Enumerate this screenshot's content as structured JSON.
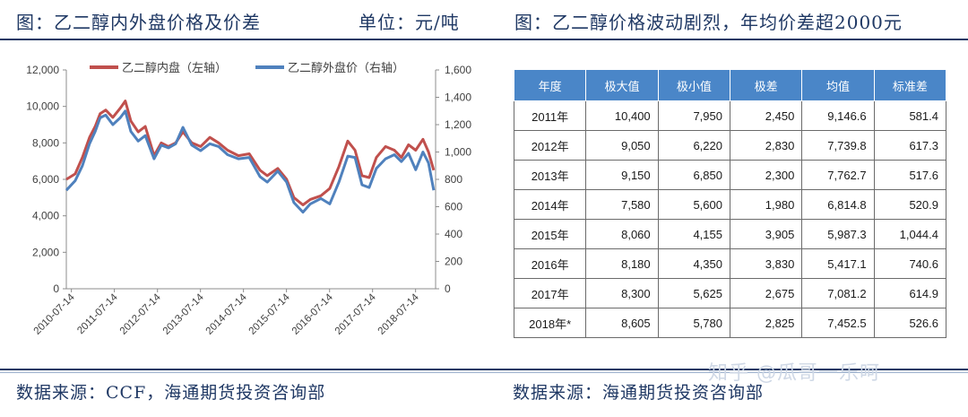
{
  "header": {
    "left_title": "图：乙二醇内外盘价格及价差",
    "unit": "单位：元/吨",
    "right_title": "图：乙二醇价格波动剧烈，年均价差超2000元"
  },
  "footer": {
    "left_source": "数据来源：CCF，海通期货投资咨询部",
    "right_source": "数据来源：海通期货投资咨询部"
  },
  "watermark": "知乎 @瓜哥一乐呵",
  "colors": {
    "domestic": "#c0504d",
    "foreign": "#4f81bd",
    "table_header": "#4a86c8",
    "text_dark": "#1f3864"
  },
  "chart_data": {
    "type": "line",
    "title": "",
    "legend_position": "top",
    "grid": false,
    "x_labels": [
      "2010-07-14",
      "2011-07-14",
      "2012-07-14",
      "2013-07-14",
      "2014-07-14",
      "2015-07-14",
      "2016-07-14",
      "2017-07-14",
      "2018-07-14"
    ],
    "x_range": [
      "2010-06-01",
      "2018-12-31"
    ],
    "y_left": {
      "ticks": [
        "0",
        "2,000",
        "4,000",
        "6,000",
        "8,000",
        "10,000",
        "12,000"
      ],
      "min": 0,
      "max": 12000
    },
    "y_right": {
      "ticks": [
        "0",
        "200",
        "400",
        "600",
        "800",
        "1,000",
        "1,200",
        "1,400",
        "1,600"
      ],
      "min": 0,
      "max": 1600
    },
    "series": [
      {
        "name": "乙二醇内盘（左轴）",
        "axis": "left",
        "points": [
          [
            "2010-06-01",
            6000
          ],
          [
            "2010-08-15",
            6300
          ],
          [
            "2010-10-15",
            7200
          ],
          [
            "2010-12-15",
            8300
          ],
          [
            "2011-02-01",
            8900
          ],
          [
            "2011-03-15",
            9600
          ],
          [
            "2011-05-01",
            9800
          ],
          [
            "2011-07-01",
            9400
          ],
          [
            "2011-09-01",
            9900
          ],
          [
            "2011-10-15",
            10300
          ],
          [
            "2011-12-01",
            9200
          ],
          [
            "2012-02-01",
            8600
          ],
          [
            "2012-04-01",
            8900
          ],
          [
            "2012-06-15",
            7300
          ],
          [
            "2012-08-15",
            8000
          ],
          [
            "2012-10-15",
            7800
          ],
          [
            "2012-12-15",
            8000
          ],
          [
            "2013-02-15",
            8600
          ],
          [
            "2013-05-01",
            8000
          ],
          [
            "2013-07-15",
            7800
          ],
          [
            "2013-10-01",
            8300
          ],
          [
            "2013-12-15",
            8000
          ],
          [
            "2014-03-01",
            7600
          ],
          [
            "2014-06-01",
            7300
          ],
          [
            "2014-09-01",
            7400
          ],
          [
            "2014-12-01",
            6500
          ],
          [
            "2015-02-01",
            6200
          ],
          [
            "2015-05-01",
            6600
          ],
          [
            "2015-07-15",
            6000
          ],
          [
            "2015-09-15",
            5000
          ],
          [
            "2015-12-01",
            4600
          ],
          [
            "2016-02-01",
            4900
          ],
          [
            "2016-05-01",
            5100
          ],
          [
            "2016-07-15",
            5500
          ],
          [
            "2016-10-01",
            6700
          ],
          [
            "2016-12-15",
            8100
          ],
          [
            "2017-02-15",
            7600
          ],
          [
            "2017-04-15",
            6200
          ],
          [
            "2017-06-15",
            6100
          ],
          [
            "2017-08-15",
            7200
          ],
          [
            "2017-11-01",
            7800
          ],
          [
            "2018-01-15",
            7600
          ],
          [
            "2018-03-15",
            7200
          ],
          [
            "2018-05-15",
            7900
          ],
          [
            "2018-07-15",
            7600
          ],
          [
            "2018-09-15",
            8200
          ],
          [
            "2018-11-01",
            7500
          ],
          [
            "2018-12-15",
            6500
          ]
        ]
      },
      {
        "name": "乙二醇外盘价（右轴）",
        "axis": "right",
        "points": [
          [
            "2010-06-01",
            720
          ],
          [
            "2010-08-15",
            790
          ],
          [
            "2010-10-15",
            900
          ],
          [
            "2010-12-15",
            1060
          ],
          [
            "2011-02-01",
            1150
          ],
          [
            "2011-03-15",
            1250
          ],
          [
            "2011-05-01",
            1270
          ],
          [
            "2011-07-01",
            1200
          ],
          [
            "2011-09-01",
            1250
          ],
          [
            "2011-10-15",
            1300
          ],
          [
            "2011-12-01",
            1150
          ],
          [
            "2012-02-01",
            1080
          ],
          [
            "2012-04-01",
            1120
          ],
          [
            "2012-06-15",
            950
          ],
          [
            "2012-08-15",
            1050
          ],
          [
            "2012-10-15",
            1030
          ],
          [
            "2012-12-15",
            1060
          ],
          [
            "2013-02-15",
            1180
          ],
          [
            "2013-05-01",
            1050
          ],
          [
            "2013-07-15",
            1010
          ],
          [
            "2013-10-01",
            1060
          ],
          [
            "2013-12-15",
            1040
          ],
          [
            "2014-03-01",
            980
          ],
          [
            "2014-06-01",
            950
          ],
          [
            "2014-09-01",
            960
          ],
          [
            "2014-12-01",
            820
          ],
          [
            "2015-02-01",
            780
          ],
          [
            "2015-05-01",
            860
          ],
          [
            "2015-07-15",
            780
          ],
          [
            "2015-09-15",
            630
          ],
          [
            "2015-12-01",
            560
          ],
          [
            "2016-02-01",
            620
          ],
          [
            "2016-05-01",
            660
          ],
          [
            "2016-07-15",
            620
          ],
          [
            "2016-10-01",
            780
          ],
          [
            "2016-12-15",
            970
          ],
          [
            "2017-02-15",
            960
          ],
          [
            "2017-04-15",
            760
          ],
          [
            "2017-06-15",
            740
          ],
          [
            "2017-08-15",
            880
          ],
          [
            "2017-11-01",
            950
          ],
          [
            "2018-01-15",
            980
          ],
          [
            "2018-03-15",
            930
          ],
          [
            "2018-05-15",
            990
          ],
          [
            "2018-07-15",
            870
          ],
          [
            "2018-09-15",
            1000
          ],
          [
            "2018-11-01",
            920
          ],
          [
            "2018-12-15",
            720
          ]
        ]
      }
    ]
  },
  "table": {
    "headers": [
      "年度",
      "极大值",
      "极小值",
      "极差",
      "均值",
      "标准差"
    ],
    "rows": [
      [
        "2011年",
        "10,400",
        "7,950",
        "2,450",
        "9,146.6",
        "581.4"
      ],
      [
        "2012年",
        "9,050",
        "6,220",
        "2,830",
        "7,739.8",
        "617.3"
      ],
      [
        "2013年",
        "9,150",
        "6,850",
        "2,300",
        "7,762.7",
        "517.6"
      ],
      [
        "2014年",
        "7,580",
        "5,600",
        "1,980",
        "6,814.8",
        "520.9"
      ],
      [
        "2015年",
        "8,060",
        "4,155",
        "3,905",
        "5,987.3",
        "1,044.4"
      ],
      [
        "2016年",
        "8,180",
        "4,350",
        "3,830",
        "5,417.1",
        "740.6"
      ],
      [
        "2017年",
        "8,300",
        "5,625",
        "2,675",
        "7,081.2",
        "614.9"
      ],
      [
        "2018年*",
        "8,605",
        "5,780",
        "2,825",
        "7,452.5",
        "526.6"
      ]
    ]
  }
}
